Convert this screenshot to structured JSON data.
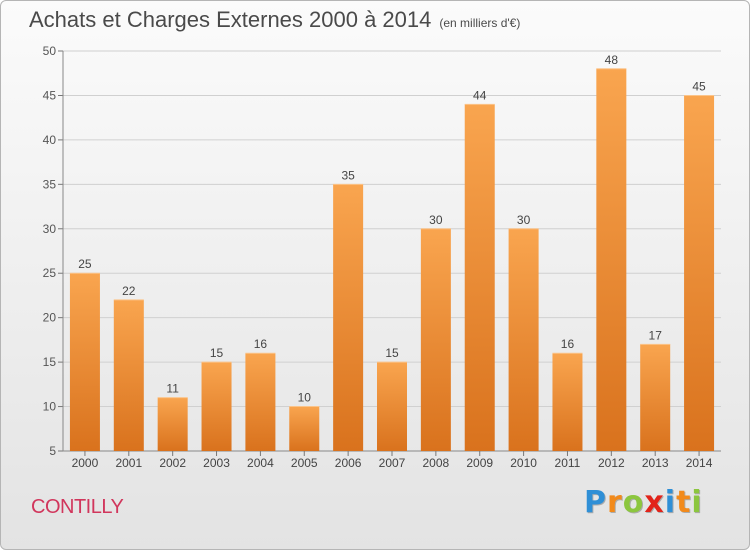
{
  "title": "Achats et Charges Externes 2000 à 2014",
  "subtitle": "(en milliers d'€)",
  "commune": "CONTILLY",
  "logo": {
    "text": "Proxiti",
    "letters": [
      {
        "ch": "P",
        "color": "#2f8fd6"
      },
      {
        "ch": "r",
        "color": "#f28a1b"
      },
      {
        "ch": "o",
        "color": "#8cc63f"
      },
      {
        "ch": "x",
        "color": "#e2231a"
      },
      {
        "ch": "i",
        "color": "#2f8fd6"
      },
      {
        "ch": "t",
        "color": "#f28a1b"
      },
      {
        "ch": "i",
        "color": "#8cc63f"
      }
    ]
  },
  "chart_data": {
    "type": "bar",
    "title": "Achats et Charges Externes 2000 à 2014",
    "subtitle": "(en milliers d'€)",
    "categories": [
      "2000",
      "2001",
      "2002",
      "2003",
      "2004",
      "2005",
      "2006",
      "2007",
      "2008",
      "2009",
      "2010",
      "2011",
      "2012",
      "2013",
      "2014"
    ],
    "values": [
      25,
      22,
      11,
      15,
      16,
      10,
      35,
      15,
      30,
      44,
      30,
      16,
      48,
      17,
      45
    ],
    "ylim": [
      5,
      50
    ],
    "yticks": [
      5,
      10,
      15,
      20,
      25,
      30,
      35,
      40,
      45,
      50
    ],
    "grid": true,
    "bar_color_top": "#f9a54f",
    "bar_color_bottom": "#d9721d"
  }
}
